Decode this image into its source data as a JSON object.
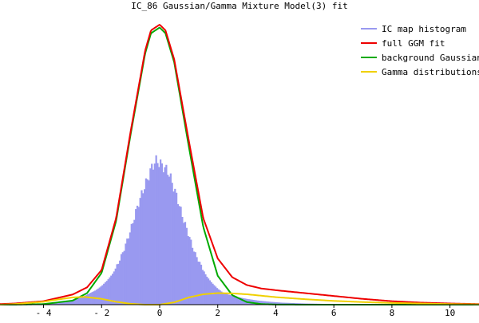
{
  "chart_data": {
    "type": "area",
    "title": "IC_86 Gaussian/Gamma Mixture Model(3) fit",
    "xlim": [
      -5.5,
      11
    ],
    "ylim": [
      0,
      1.0
    ],
    "x_ticks": [
      -4,
      -2,
      0,
      2,
      4,
      6,
      8,
      10
    ],
    "x_tick_labels": [
      "- 4",
      "- 2",
      "0",
      "2",
      "4",
      "6",
      "8",
      "10"
    ],
    "grid": false,
    "legend_position": "top-right",
    "colors": {
      "histogram": "#9999f0",
      "full_fit": "#ee0000",
      "background": "#00aa00",
      "gamma": "#f0d000",
      "axis": "#000000"
    },
    "series": [
      {
        "name": "IC map histogram",
        "kind": "histogram",
        "x": [
          -3.8,
          -3.4,
          -3.0,
          -2.6,
          -2.2,
          -2.0,
          -1.8,
          -1.6,
          -1.4,
          -1.2,
          -1.0,
          -0.8,
          -0.6,
          -0.4,
          -0.3,
          -0.2,
          -0.1,
          0.0,
          0.1,
          0.2,
          0.3,
          0.4,
          0.6,
          0.8,
          1.0,
          1.2,
          1.4,
          1.6,
          1.8,
          2.0,
          2.2,
          2.6,
          3.0,
          3.4,
          3.8,
          4.2,
          5.0,
          6.0,
          7.0,
          8.0,
          9.0,
          10.0
        ],
        "y": [
          0.004,
          0.008,
          0.016,
          0.03,
          0.05,
          0.065,
          0.085,
          0.11,
          0.15,
          0.2,
          0.26,
          0.33,
          0.39,
          0.44,
          0.47,
          0.49,
          0.5,
          0.49,
          0.48,
          0.47,
          0.46,
          0.43,
          0.37,
          0.3,
          0.24,
          0.18,
          0.14,
          0.1,
          0.075,
          0.055,
          0.04,
          0.028,
          0.02,
          0.014,
          0.01,
          0.007,
          0.004,
          0.002,
          0.001,
          0.0005,
          0.0003,
          0.0002
        ]
      },
      {
        "name": "full GGM fit",
        "kind": "line",
        "x": [
          -5.5,
          -5,
          -4,
          -3,
          -2.5,
          -2,
          -1.5,
          -1,
          -0.5,
          -0.3,
          0,
          0.2,
          0.5,
          1,
          1.5,
          2,
          2.5,
          3,
          3.5,
          4,
          5,
          6,
          7,
          8,
          9,
          10,
          11
        ],
        "y": [
          0.002,
          0.004,
          0.012,
          0.035,
          0.06,
          0.12,
          0.3,
          0.6,
          0.88,
          0.95,
          0.97,
          0.95,
          0.85,
          0.57,
          0.3,
          0.16,
          0.095,
          0.068,
          0.056,
          0.05,
          0.04,
          0.03,
          0.02,
          0.012,
          0.007,
          0.004,
          0.002
        ]
      },
      {
        "name": "background Gaussian",
        "kind": "line",
        "x": [
          -5.5,
          -5,
          -4,
          -3,
          -2.5,
          -2,
          -1.5,
          -1,
          -0.5,
          -0.3,
          0,
          0.2,
          0.5,
          1,
          1.5,
          2,
          2.5,
          3,
          3.5,
          4,
          5,
          6
        ],
        "y": [
          0.0,
          0.0,
          0.002,
          0.014,
          0.04,
          0.11,
          0.29,
          0.59,
          0.87,
          0.94,
          0.96,
          0.94,
          0.84,
          0.55,
          0.27,
          0.1,
          0.033,
          0.009,
          0.002,
          0.0005,
          0.0,
          0.0
        ]
      },
      {
        "name": "Gamma distributions",
        "kind": "line",
        "x": [
          -5.5,
          -5,
          -4,
          -3.5,
          -3,
          -2.6,
          -2,
          -1.5,
          -1,
          -0.5,
          0,
          0.5,
          1,
          1.5,
          2,
          2.5,
          3,
          3.5,
          4,
          5,
          6,
          7,
          8,
          9,
          10,
          11
        ],
        "y": [
          0.0,
          0.002,
          0.01,
          0.018,
          0.025,
          0.027,
          0.02,
          0.01,
          0.003,
          0.0,
          0.0,
          0.008,
          0.025,
          0.036,
          0.04,
          0.039,
          0.036,
          0.031,
          0.026,
          0.019,
          0.013,
          0.009,
          0.006,
          0.004,
          0.002,
          0.001
        ]
      }
    ]
  }
}
